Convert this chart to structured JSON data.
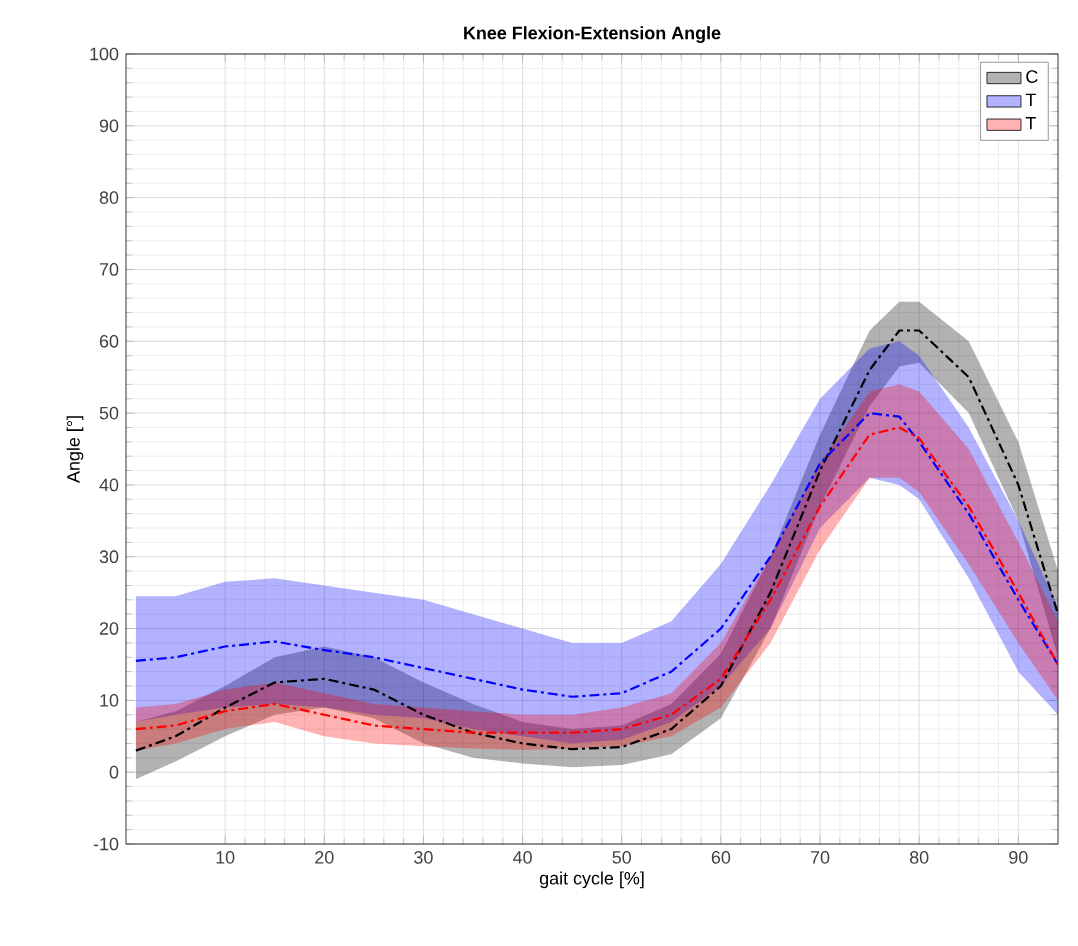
{
  "chart_data": {
    "type": "line",
    "title": "Knee Flexion-Extension Angle",
    "xlabel": "gait cycle [%]",
    "ylabel": "Angle [°]",
    "xlim": [
      0,
      94
    ],
    "ylim": [
      -10,
      100
    ],
    "xticks": [
      10,
      20,
      30,
      40,
      50,
      60,
      70,
      80,
      90
    ],
    "yticks": [
      -10,
      0,
      10,
      20,
      30,
      40,
      50,
      60,
      70,
      80,
      90,
      100
    ],
    "grid": true,
    "legend": "top right",
    "line_style": "dashed",
    "x": [
      1,
      5,
      10,
      15,
      20,
      25,
      30,
      35,
      40,
      45,
      50,
      55,
      60,
      65,
      70,
      75,
      78,
      80,
      85,
      90,
      94
    ],
    "series": [
      {
        "name": "C",
        "color": "#000000",
        "values": [
          3,
          5,
          9,
          12.5,
          13,
          11.5,
          8,
          5.5,
          4,
          3.2,
          3.5,
          6,
          12,
          25,
          42,
          56,
          61.5,
          61.5,
          55,
          40,
          22
        ],
        "lower": [
          -1,
          1.5,
          5,
          8,
          9,
          7.5,
          4,
          2,
          1.2,
          0.7,
          1,
          2.5,
          7.5,
          20,
          37,
          51,
          56.5,
          57,
          50,
          35,
          16
        ],
        "upper": [
          7,
          8.5,
          12,
          16,
          17.5,
          16,
          12.5,
          9.5,
          7,
          6,
          6.5,
          9.5,
          16.5,
          30,
          47,
          61.5,
          65.5,
          65.5,
          60,
          46,
          28
        ]
      },
      {
        "name": "T",
        "color": "#0000ff",
        "values": [
          15.5,
          16,
          17.5,
          18.2,
          17,
          16,
          14.5,
          13,
          11.5,
          10.5,
          11,
          14,
          20,
          30,
          43,
          50,
          49.5,
          46,
          36,
          24,
          15
        ],
        "lower": [
          7,
          8,
          9,
          9.5,
          9,
          8,
          7.5,
          6,
          5,
          4,
          4.5,
          7,
          12,
          20,
          34,
          41,
          40,
          38,
          27,
          14,
          8
        ],
        "upper": [
          24.5,
          24.5,
          26.5,
          27,
          26,
          25,
          24,
          22,
          20,
          18,
          18,
          21,
          29,
          40,
          52,
          59,
          60,
          58,
          48,
          35,
          23
        ]
      },
      {
        "name": "T",
        "color": "#ff0000",
        "values": [
          6,
          6.5,
          8.5,
          9.5,
          8,
          6.5,
          6,
          5.5,
          5.5,
          5.5,
          6,
          8,
          13,
          24,
          37,
          47,
          48,
          46.5,
          37,
          25,
          15
        ],
        "lower": [
          3,
          4,
          6,
          7,
          5,
          4,
          3.6,
          3.3,
          3.1,
          3.3,
          3.6,
          5,
          9,
          18,
          31,
          41,
          41,
          39,
          29,
          18,
          10
        ],
        "upper": [
          9,
          9.5,
          11.5,
          12.5,
          11,
          9.5,
          9,
          8.5,
          8,
          8,
          9,
          11,
          18,
          30,
          43,
          53,
          54,
          53,
          45,
          32,
          21
        ]
      }
    ]
  }
}
